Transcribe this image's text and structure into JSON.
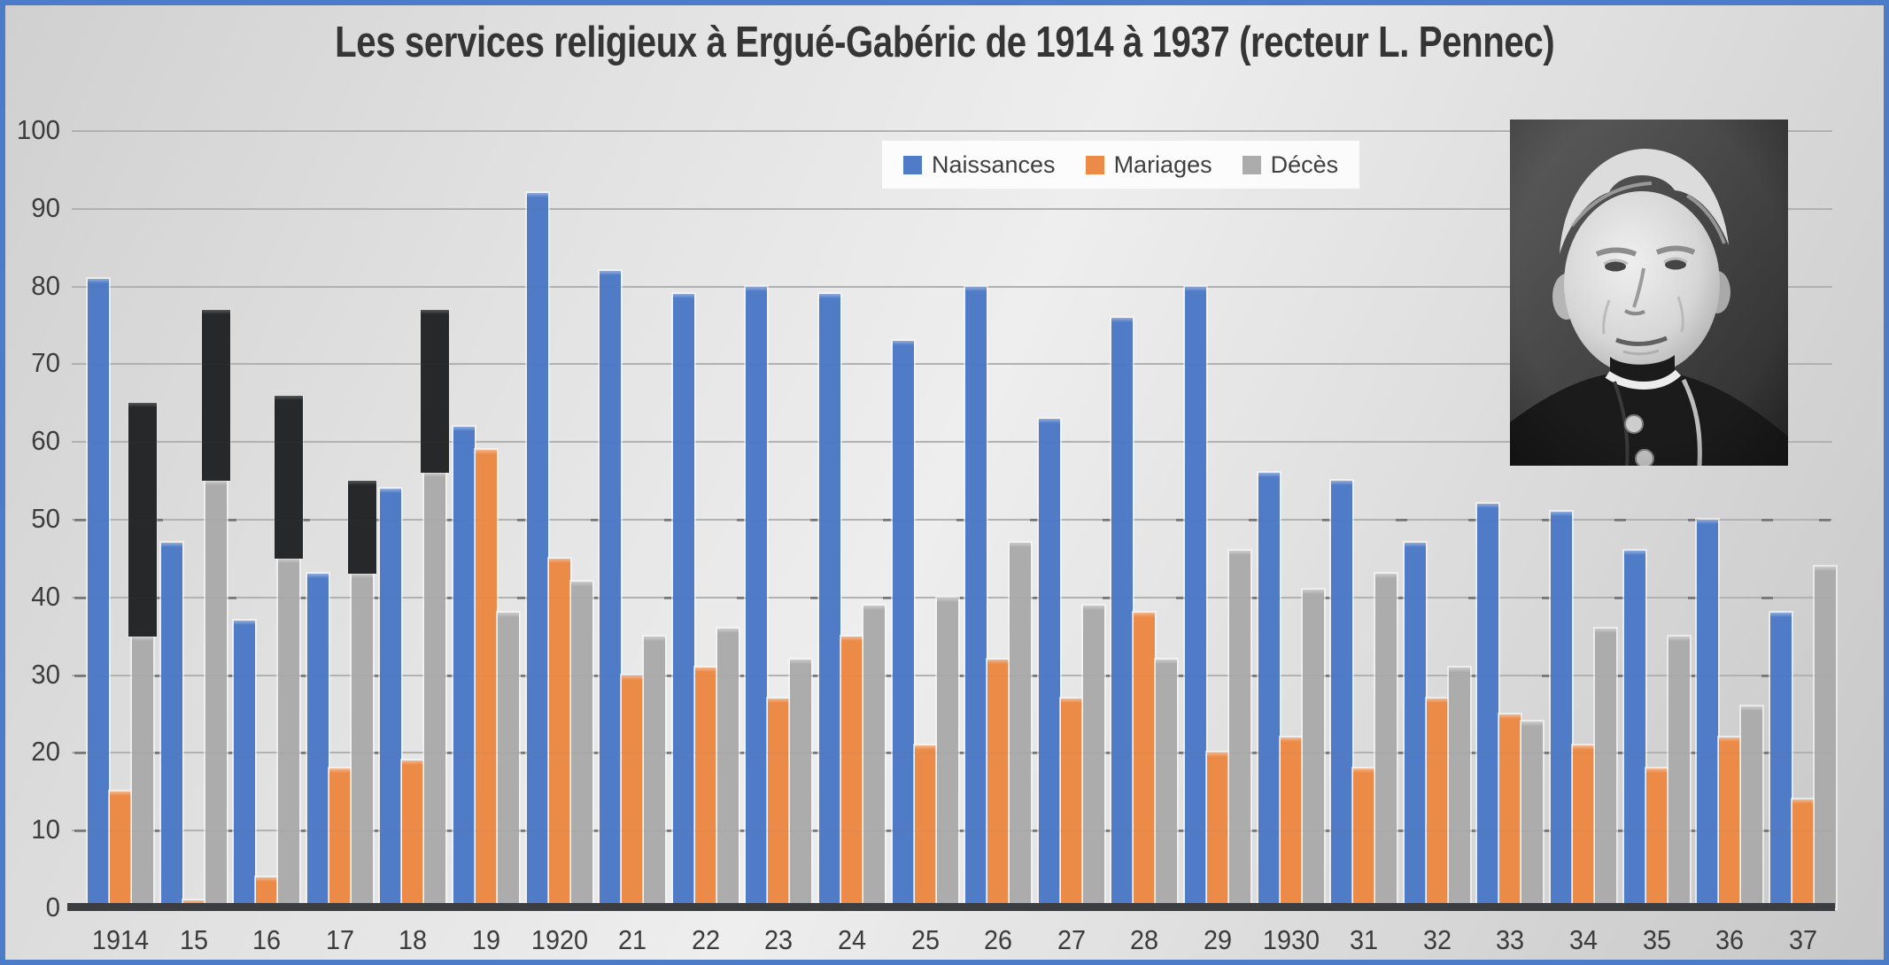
{
  "window": {
    "border_color": "#4c7cc8",
    "background_base": "#dcdcdc"
  },
  "title": {
    "text": "Les services religieux à Ergué-Gabéric de 1914 à 1937 (recteur L. Pennec)",
    "color": "#353535"
  },
  "legend": {
    "background": "#fbfbfb",
    "items": [
      {
        "label": "Naissances",
        "color": "#4f7bc7"
      },
      {
        "label": "Mariages",
        "color": "#ec8a47"
      },
      {
        "label": "Décès",
        "color": "#acacac"
      }
    ]
  },
  "photo": {
    "description": "Portrait photographique noir et blanc du recteur L. Pennec (ecclésiastique âgé, cheveux blancs, habit sombre à col romain)"
  },
  "chart_data": {
    "type": "bar",
    "title": "Les services religieux à Ergué-Gabéric de 1914 à 1937 (recteur L. Pennec)",
    "categories": [
      "1914",
      "15",
      "16",
      "17",
      "18",
      "19",
      "1920",
      "21",
      "22",
      "23",
      "24",
      "25",
      "26",
      "27",
      "28",
      "29",
      "1930",
      "31",
      "32",
      "33",
      "34",
      "35",
      "36",
      "37"
    ],
    "series": [
      {
        "name": "Naissances",
        "color": "#4f7bc7",
        "values": [
          81,
          47,
          37,
          43,
          54,
          62,
          92,
          82,
          79,
          80,
          79,
          73,
          80,
          63,
          76,
          80,
          56,
          55,
          47,
          52,
          51,
          46,
          50,
          38
        ]
      },
      {
        "name": "Mariages",
        "color": "#ec8a47",
        "values": [
          15,
          1,
          4,
          18,
          19,
          59,
          45,
          30,
          31,
          27,
          35,
          21,
          32,
          27,
          38,
          20,
          22,
          18,
          27,
          25,
          21,
          18,
          22,
          14
        ]
      },
      {
        "name": "Décès",
        "color": "#acacac",
        "values": [
          35,
          55,
          45,
          43,
          56,
          38,
          42,
          35,
          36,
          32,
          39,
          40,
          47,
          39,
          32,
          46,
          41,
          43,
          31,
          24,
          36,
          35,
          26,
          44
        ]
      }
    ],
    "black_overlay_segments": {
      "color": "#26282a",
      "note": "Segments noirs superposés aux barres Décès pendant les années de guerre 1914-1918",
      "items": [
        {
          "category": "1914",
          "from": 35,
          "to": 65
        },
        {
          "category": "15",
          "from": 55,
          "to": 77
        },
        {
          "category": "16",
          "from": 45,
          "to": 66
        },
        {
          "category": "17",
          "from": 43,
          "to": 55
        },
        {
          "category": "18",
          "from": 56,
          "to": 77
        }
      ]
    },
    "ylim": [
      0,
      100
    ],
    "ytick_interval": 10,
    "y_ticks": [
      0,
      10,
      20,
      30,
      40,
      50,
      60,
      70,
      80,
      90,
      100
    ],
    "grid": true,
    "legend_position": "top-center"
  }
}
